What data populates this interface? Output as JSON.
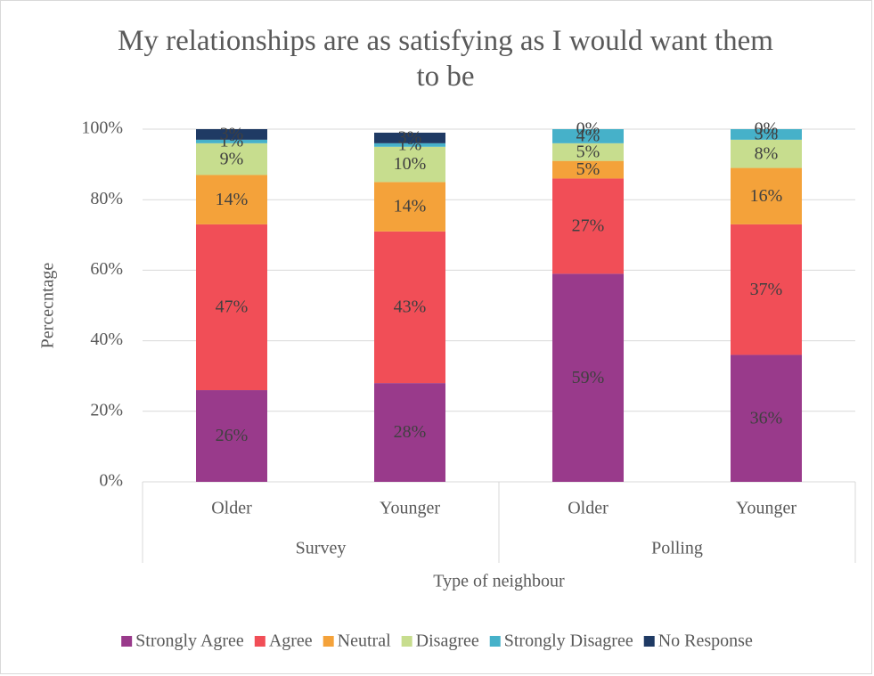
{
  "chart_data": {
    "type": "stacked_bar",
    "title": "My relationships are as satisfying as I would want them to be",
    "xlabel": "Type of neighbour",
    "ylabel": "Percecntage",
    "groups": [
      {
        "name": "Survey",
        "categories": [
          "Older",
          "Younger"
        ]
      },
      {
        "name": "Polling",
        "categories": [
          "Older",
          "Younger"
        ]
      }
    ],
    "series": [
      {
        "name": "Strongly Agree",
        "color": "#993a8b",
        "values": [
          26,
          28,
          59,
          36
        ],
        "value_labels": [
          "26%",
          "28%",
          "59%",
          "36%"
        ]
      },
      {
        "name": "Agree",
        "color": "#f14e57",
        "values": [
          47,
          43,
          27,
          37
        ],
        "value_labels": [
          "47%",
          "43%",
          "27%",
          "37%"
        ]
      },
      {
        "name": "Neutral",
        "color": "#f4a23a",
        "values": [
          14,
          14,
          5,
          16
        ],
        "value_labels": [
          "14%",
          "14%",
          "5%",
          "16%"
        ]
      },
      {
        "name": "Disagree",
        "color": "#c7dd8e",
        "values": [
          9,
          10,
          5,
          8
        ],
        "value_labels": [
          "9%",
          "10%",
          "5%",
          "8%"
        ]
      },
      {
        "name": "Strongly Disagree",
        "color": "#46b1c9",
        "values": [
          1,
          1,
          4,
          3
        ],
        "value_labels": [
          "1%",
          "1%",
          "4%",
          "3%"
        ]
      },
      {
        "name": "No Response",
        "color": "#1f3a64",
        "values": [
          3,
          3,
          0,
          0
        ],
        "value_labels": [
          "3%",
          "3%",
          "0%",
          "0%"
        ]
      }
    ],
    "ylim": [
      0,
      100
    ],
    "yticks": [
      {
        "value": 0,
        "label": "0%"
      },
      {
        "value": 20,
        "label": "20%"
      },
      {
        "value": 40,
        "label": "40%"
      },
      {
        "value": 60,
        "label": "60%"
      },
      {
        "value": 80,
        "label": "80%"
      },
      {
        "value": 100,
        "label": "100%"
      }
    ],
    "grid": true,
    "legend": "bottom"
  }
}
